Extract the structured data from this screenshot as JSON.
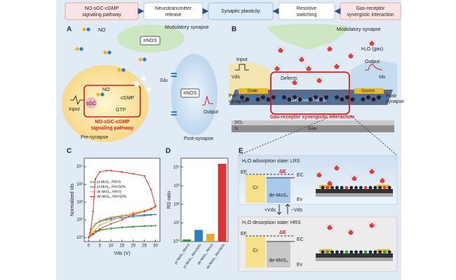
{
  "flow": [
    [
      "NO-sGC-cGMP",
      "signaling pathway"
    ],
    [
      "Neurotransmitter",
      "release"
    ],
    [
      "Synaptic plasticity"
    ],
    [
      "Resistive",
      "switching"
    ],
    [
      "Gas-receptor",
      "synergistic interaction"
    ]
  ],
  "panel_a": {
    "label": "A",
    "no_key": "NO",
    "modulatory": "Modulatory synapse",
    "nnos_top": "nNOS",
    "glu": "Glu",
    "no": "NO",
    "sgc": "sGC",
    "cgmp": "cGMP",
    "gtp": "GTP",
    "input": "Input",
    "nnos_post": "nNOS",
    "output": "Output",
    "pathway": [
      "NO-sGC-cGMP",
      "signaling pathway"
    ],
    "pre": "Pre-synapse",
    "post": "Post-synapse"
  },
  "panel_b": {
    "label": "B",
    "modulatory": "Modulatory synapse",
    "gas": "H₂O (gas)",
    "input": "Input",
    "vds": "Vds",
    "defects": "Defects",
    "output": "Output",
    "ids": "Ids",
    "drain": "Drain",
    "source": "Source",
    "pre": [
      "Pre-",
      "synapse"
    ],
    "post": [
      "Post-",
      "synapse"
    ],
    "tmdc": "Defective TMDC",
    "interaction": "Gas-receptor synergistic interaction",
    "sio2": "SiO₂",
    "si": "Si",
    "gate": "Gate"
  },
  "panel_e": {
    "label": "E",
    "top": {
      "title": "H₂O adsorption state: LRS",
      "ef": "EF",
      "de": "ΔE",
      "ec": "EC",
      "cr": "Cr",
      "mos2": "de-MoS₂",
      "ev": "Ev"
    },
    "plus": "+Vds",
    "minus": "−Vds",
    "bottom": {
      "title": "H₂O desorption state: HRS",
      "ef": "EF",
      "de": "ΔE",
      "ec": "EC",
      "cr": "Cr",
      "mos2": "de-MoS₂",
      "ev": "Ev"
    }
  },
  "chart_data": [
    {
      "type": "line",
      "panel": "C",
      "xlabel": "Vds (V)",
      "ylabel": "Normalized Ids",
      "log": true,
      "legend": "upper left",
      "x": [
        0,
        1,
        2,
        3,
        5,
        8,
        10,
        15,
        20,
        25,
        28,
        30,
        28,
        25,
        20,
        15,
        10,
        5,
        2,
        0
      ],
      "series": [
        {
          "name": "pr-MoS₂, RH=0",
          "color": "#3a9a3a",
          "values": [
            1,
            1.5,
            2,
            2.3,
            2.7,
            3,
            3.2,
            3.7,
            4,
            4.3,
            4.5,
            4.7,
            4.6,
            4.5,
            4.2,
            3.8,
            3.3,
            2.5,
            1.6,
            1
          ]
        },
        {
          "name": "pr-MoS₂, RH=50%",
          "color": "#2a7fc1",
          "values": [
            1,
            2,
            4,
            6,
            8,
            10,
            11,
            13,
            15,
            17,
            19,
            20,
            20,
            19,
            18,
            16,
            13,
            9,
            4,
            1
          ]
        },
        {
          "name": "de-MoS₂, RH=0",
          "color": "#f0a830",
          "values": [
            1,
            2,
            4,
            6,
            9,
            12,
            14,
            18,
            22,
            30,
            40,
            50,
            45,
            35,
            25,
            15,
            9,
            5,
            2,
            1
          ]
        },
        {
          "name": "de-MoS₂, RH=50%",
          "color": "#e03030",
          "values": [
            1,
            3,
            30,
            2000,
            5000,
            6000,
            6000,
            5000,
            4000,
            3000,
            500,
            60,
            40,
            30,
            20,
            10,
            6,
            3,
            1.5,
            1
          ]
        }
      ],
      "xlim": [
        -2,
        32
      ],
      "xticks": [
        0,
        5,
        10,
        15,
        20,
        25,
        30
      ],
      "ylim": [
        0.6,
        30000
      ],
      "yticks": [
        {
          "value": 1,
          "label": "10⁰"
        },
        {
          "value": 10,
          "label": "10¹"
        },
        {
          "value": 100,
          "label": "10²"
        },
        {
          "value": 1000,
          "label": "10³"
        },
        {
          "value": 10000,
          "label": "10⁴"
        }
      ]
    },
    {
      "type": "bar",
      "panel": "D",
      "ylabel": "RS ratio",
      "log": true,
      "categories": [
        "pr-MoS₂, RH=0",
        "pr-MoS₂, RH=50%",
        "de-MoS₂, RH=0",
        "de-MoS₂, RH=50%"
      ],
      "values": [
        1.3,
        4.2,
        2.6,
        15000
      ],
      "colors": [
        "#3a9a3a",
        "#2a7fc1",
        "#f0a830",
        "#e03030"
      ],
      "ylim": [
        1,
        30000
      ],
      "yticks": [
        {
          "value": 1,
          "label": "10⁰"
        },
        {
          "value": 10,
          "label": "10¹"
        },
        {
          "value": 100,
          "label": "10²"
        },
        {
          "value": 1000,
          "label": "10³"
        },
        {
          "value": 10000,
          "label": "10⁴"
        }
      ]
    }
  ]
}
